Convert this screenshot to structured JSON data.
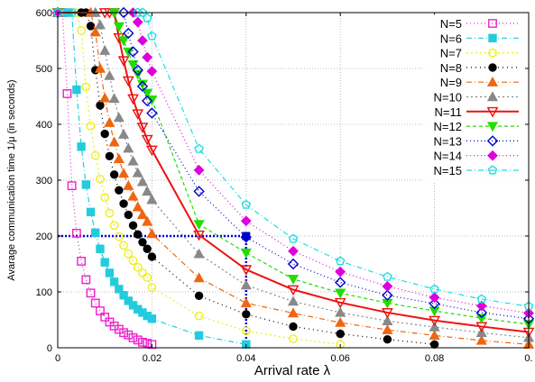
{
  "chart_data": {
    "type": "line",
    "xlabel": "Arrival rate λ",
    "ylabel": "Avarage communication time 1/μ (in seconds)",
    "xlim": [
      0,
      0.1
    ],
    "ylim": [
      0,
      600
    ],
    "x_tick_labels": [
      "0",
      "0.02",
      "0.04",
      "0.06",
      "0.08",
      "0."
    ],
    "y_ticks": [
      0,
      100,
      200,
      300,
      400,
      500,
      600
    ],
    "grid": true,
    "legend_position": "top-right",
    "annotation": {
      "x": 0.04,
      "y": 200,
      "color": "#0000cc"
    },
    "series": [
      {
        "name": "N=5",
        "color": "#ee22cc",
        "marker": "square-open",
        "dash": "1,3",
        "x": [
          0,
          0.001,
          0.002,
          0.003,
          0.004,
          0.005,
          0.006,
          0.007,
          0.008,
          0.009,
          0.01,
          0.011,
          0.012,
          0.013,
          0.014,
          0.015,
          0.016,
          0.017,
          0.018,
          0.019,
          0.02
        ],
        "y": [
          600,
          600,
          455,
          290,
          205,
          155,
          122,
          98,
          80,
          66,
          55,
          46,
          39,
          33,
          27,
          23,
          18,
          14,
          10,
          8,
          6
        ]
      },
      {
        "name": "N=6",
        "color": "#22ccdd",
        "marker": "square",
        "dash": "6,3,1,3",
        "x": [
          0,
          0.002,
          0.003,
          0.004,
          0.005,
          0.006,
          0.007,
          0.008,
          0.009,
          0.01,
          0.011,
          0.012,
          0.013,
          0.014,
          0.015,
          0.016,
          0.017,
          0.018,
          0.019,
          0.02,
          0.03,
          0.04
        ],
        "y": [
          600,
          600,
          600,
          462,
          360,
          292,
          243,
          206,
          177,
          153,
          134,
          118,
          105,
          94,
          84,
          76,
          69,
          63,
          57,
          52,
          22,
          6
        ]
      },
      {
        "name": "N=7",
        "color": "#eeee22",
        "marker": "circle-open",
        "dash": "2,3",
        "x": [
          0,
          0.004,
          0.005,
          0.006,
          0.007,
          0.008,
          0.009,
          0.01,
          0.011,
          0.012,
          0.013,
          0.014,
          0.015,
          0.016,
          0.017,
          0.018,
          0.019,
          0.02,
          0.03,
          0.04,
          0.05,
          0.06
        ],
        "y": [
          600,
          600,
          568,
          467,
          397,
          344,
          302,
          269,
          241,
          219,
          199,
          183,
          168,
          156,
          144,
          134,
          126,
          108,
          57,
          30,
          16,
          6
        ]
      },
      {
        "name": "N=8",
        "color": "#000000",
        "marker": "circle",
        "dash": "1,4",
        "x": [
          0,
          0.005,
          0.006,
          0.007,
          0.008,
          0.009,
          0.01,
          0.011,
          0.012,
          0.013,
          0.014,
          0.015,
          0.016,
          0.017,
          0.018,
          0.019,
          0.02,
          0.03,
          0.04,
          0.05,
          0.06,
          0.07,
          0.08
        ],
        "y": [
          600,
          600,
          600,
          576,
          497,
          434,
          383,
          343,
          310,
          282,
          258,
          238,
          219,
          203,
          189,
          177,
          163,
          93,
          60,
          38,
          25,
          15,
          6
        ]
      },
      {
        "name": "N=9",
        "color": "#ee6611",
        "marker": "triangle-up",
        "dash": "6,3,1,3",
        "x": [
          0,
          0.007,
          0.008,
          0.009,
          0.01,
          0.011,
          0.012,
          0.013,
          0.014,
          0.015,
          0.016,
          0.017,
          0.018,
          0.019,
          0.02,
          0.03,
          0.04,
          0.05,
          0.06,
          0.07,
          0.08,
          0.09,
          0.1
        ],
        "y": [
          600,
          600,
          565,
          500,
          447,
          403,
          368,
          338,
          312,
          290,
          271,
          252,
          238,
          226,
          204,
          125,
          80,
          62,
          45,
          32,
          22,
          13,
          6
        ]
      },
      {
        "name": "N=10",
        "color": "#888888",
        "marker": "triangle-up",
        "dash": "2,3",
        "x": [
          0,
          0.008,
          0.009,
          0.01,
          0.011,
          0.012,
          0.013,
          0.014,
          0.015,
          0.016,
          0.017,
          0.018,
          0.019,
          0.02,
          0.03,
          0.04,
          0.05,
          0.06,
          0.07,
          0.08,
          0.09,
          0.1
        ],
        "y": [
          600,
          600,
          578,
          532,
          487,
          446,
          412,
          382,
          357,
          334,
          313,
          297,
          280,
          265,
          168,
          112,
          83,
          63,
          48,
          37,
          27,
          18
        ]
      },
      {
        "name": "N=11",
        "color": "#ee1111",
        "marker": "triangle-down-open",
        "dash": "",
        "x": [
          0,
          0.01,
          0.011,
          0.012,
          0.013,
          0.014,
          0.015,
          0.016,
          0.017,
          0.018,
          0.019,
          0.02,
          0.03,
          0.04,
          0.05,
          0.06,
          0.07,
          0.08,
          0.09,
          0.1
        ],
        "y": [
          600,
          600,
          600,
          600,
          555,
          514,
          478,
          446,
          419,
          395,
          373,
          354,
          202,
          140,
          104,
          81,
          63,
          49,
          38,
          28
        ]
      },
      {
        "name": "N=12",
        "color": "#22dd00",
        "marker": "triangle-down",
        "dash": "4,3",
        "x": [
          0,
          0.012,
          0.013,
          0.014,
          0.015,
          0.016,
          0.017,
          0.018,
          0.019,
          0.02,
          0.03,
          0.04,
          0.05,
          0.06,
          0.07,
          0.08,
          0.09,
          0.1
        ],
        "y": [
          600,
          600,
          575,
          550,
          530,
          507,
          490,
          472,
          456,
          444,
          221,
          170,
          123,
          98,
          80,
          66,
          53,
          42
        ]
      },
      {
        "name": "N=13",
        "color": "#0000cc",
        "marker": "diamond-open",
        "dash": "1,3",
        "x": [
          0,
          0.014,
          0.015,
          0.016,
          0.017,
          0.018,
          0.019,
          0.02,
          0.03,
          0.04,
          0.05,
          0.06,
          0.07,
          0.08,
          0.09,
          0.1
        ],
        "y": [
          600,
          600,
          563,
          530,
          497,
          468,
          442,
          420,
          280,
          198,
          150,
          117,
          94,
          79,
          63,
          52
        ]
      },
      {
        "name": "N=14",
        "color": "#dd00dd",
        "marker": "diamond",
        "dash": "1,3",
        "x": [
          0,
          0.016,
          0.017,
          0.018,
          0.019,
          0.02,
          0.03,
          0.04,
          0.05,
          0.06,
          0.07,
          0.08,
          0.09,
          0.1
        ],
        "y": [
          600,
          600,
          583,
          550,
          520,
          495,
          318,
          227,
          173,
          136,
          110,
          90,
          75,
          62
        ]
      },
      {
        "name": "N=15",
        "color": "#22dddd",
        "marker": "pentagon-open",
        "dash": "6,3,1,3",
        "x": [
          0,
          0.017,
          0.018,
          0.019,
          0.02,
          0.03,
          0.04,
          0.05,
          0.06,
          0.07,
          0.08,
          0.09,
          0.1
        ],
        "y": [
          600,
          600,
          600,
          590,
          558,
          356,
          256,
          195,
          155,
          127,
          105,
          87,
          74
        ]
      }
    ]
  }
}
